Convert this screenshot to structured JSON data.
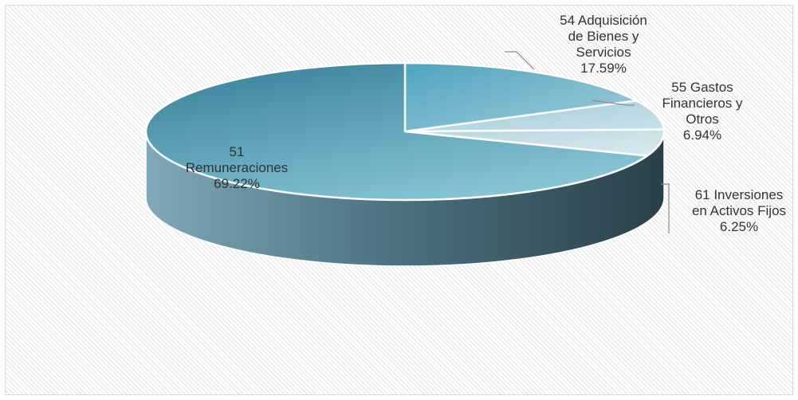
{
  "chart_data": {
    "type": "pie",
    "style": "3d",
    "title": "",
    "slices": [
      {
        "code": "54",
        "label": "Adquisición de Bienes y Servicios",
        "percent_text": "17.59%",
        "value": 17.59,
        "label_lines": [
          "54 Adquisición",
          "de Bienes y",
          "Servicios",
          "17.59%"
        ]
      },
      {
        "code": "55",
        "label": "Gastos Financieros y Otros",
        "percent_text": "6.94%",
        "value": 6.94,
        "label_lines": [
          "55 Gastos",
          "Financieros y",
          "Otros",
          "6.94%"
        ]
      },
      {
        "code": "61",
        "label": "Inversiones en Activos Fijos",
        "percent_text": "6.25%",
        "value": 6.25,
        "label_lines": [
          "61 Inversiones",
          "en Activos Fijos",
          "6.25%"
        ]
      },
      {
        "code": "51",
        "label": "Remuneraciones",
        "percent_text": "69.22%",
        "value": 69.22,
        "label_lines": [
          "51",
          "Remuneraciones",
          "69.22%"
        ]
      }
    ],
    "colors": {
      "dominant_top": "#5aa6bd",
      "dominant_side": "#3a5e6a",
      "minor_top": "#a9cfdb",
      "edge": "#ffffff"
    }
  }
}
